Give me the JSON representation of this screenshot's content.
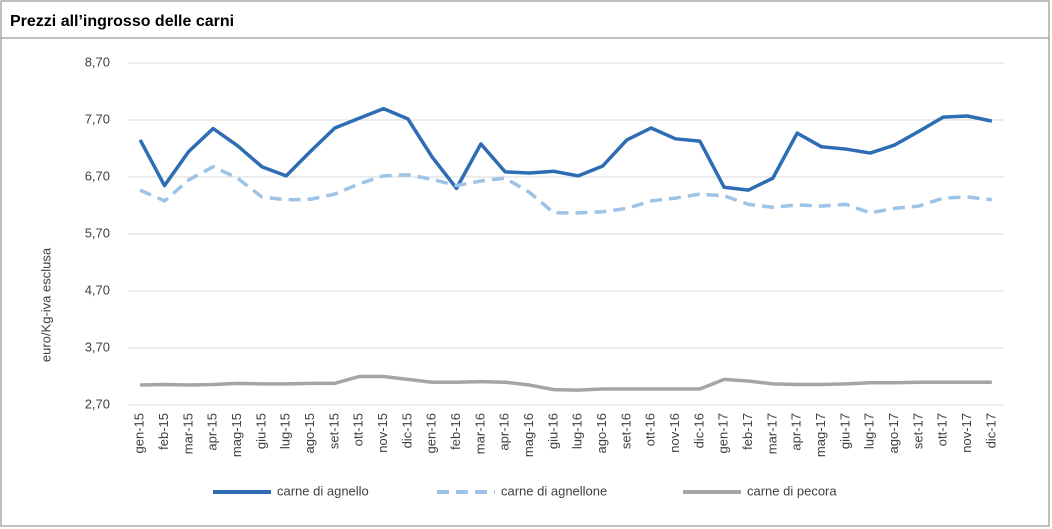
{
  "chart_data": {
    "type": "line",
    "title": "Prezzi all’ingrosso delle carni",
    "y_label": "euro/Kg-iva esclusa",
    "categories": [
      "gen-15",
      "feb-15",
      "mar-15",
      "apr-15",
      "mag-15",
      "giu-15",
      "lug-15",
      "ago-15",
      "set-15",
      "ott-15",
      "nov-15",
      "dic-15",
      "gen-16",
      "feb-16",
      "mar-16",
      "apr-16",
      "mag-16",
      "giu-16",
      "lug-16",
      "ago-16",
      "set-16",
      "ott-16",
      "nov-16",
      "dic-16",
      "gen-17",
      "feb-17",
      "mar-17",
      "apr-17",
      "mag-17",
      "giu-17",
      "lug-17",
      "ago-17",
      "set-17",
      "ott-17",
      "nov-17",
      "dic-17"
    ],
    "series": [
      {
        "name": "carne di agnello",
        "color": "#2e6db4",
        "dash": false,
        "values": [
          7.35,
          6.55,
          7.15,
          7.55,
          7.25,
          6.88,
          6.72,
          7.15,
          7.56,
          7.73,
          7.9,
          7.72,
          7.05,
          6.5,
          7.28,
          6.79,
          6.77,
          6.8,
          6.72,
          6.89,
          7.35,
          7.56,
          7.37,
          7.33,
          6.52,
          6.47,
          6.68,
          7.47,
          7.23,
          7.19,
          7.12,
          7.26,
          7.5,
          7.75,
          7.77,
          7.68
        ]
      },
      {
        "name": "carne di agnellone",
        "color": "#9dc3e6",
        "dash": true,
        "values": [
          6.47,
          6.28,
          6.65,
          6.88,
          6.68,
          6.35,
          6.3,
          6.31,
          6.4,
          6.58,
          6.72,
          6.74,
          6.66,
          6.55,
          6.63,
          6.68,
          6.43,
          6.07,
          6.07,
          6.09,
          6.15,
          6.28,
          6.33,
          6.4,
          6.37,
          6.22,
          6.17,
          6.21,
          6.19,
          6.22,
          6.07,
          6.15,
          6.19,
          6.33,
          6.35,
          6.3
        ]
      },
      {
        "name": "carne di pecora",
        "color": "#a5a5a5",
        "dash": false,
        "values": [
          3.05,
          3.06,
          3.05,
          3.06,
          3.08,
          3.07,
          3.07,
          3.08,
          3.08,
          3.2,
          3.2,
          3.15,
          3.1,
          3.1,
          3.11,
          3.1,
          3.05,
          2.97,
          2.96,
          2.98,
          2.98,
          2.98,
          2.98,
          2.98,
          3.15,
          3.12,
          3.07,
          3.06,
          3.06,
          3.07,
          3.09,
          3.09,
          3.1,
          3.1,
          3.1,
          3.1
        ]
      }
    ],
    "ylim": [
      2.7,
      8.7
    ],
    "yticks": [
      {
        "value": 2.7,
        "label": "2,70"
      },
      {
        "value": 3.7,
        "label": "3,70"
      },
      {
        "value": 4.7,
        "label": "4,70"
      },
      {
        "value": 5.7,
        "label": "5,70"
      },
      {
        "value": 6.7,
        "label": "6,70"
      },
      {
        "value": 7.7,
        "label": "7,70"
      },
      {
        "value": 8.7,
        "label": "8,70"
      }
    ],
    "grid": true,
    "legend": "bottom"
  }
}
